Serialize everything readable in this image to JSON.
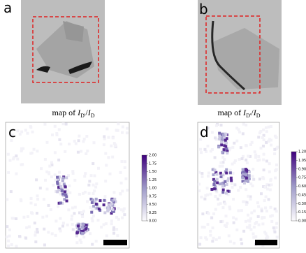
{
  "panels": [
    {
      "label": "a",
      "caption": {
        "prefix": "map of",
        "numerator": "I",
        "numerator_sub": "D'",
        "separator": "/",
        "denominator": "I",
        "denominator_sub": "D"
      }
    },
    {
      "label": "b",
      "caption": {
        "prefix": "map of",
        "numerator": "I",
        "numerator_sub": "D'",
        "separator": "/",
        "denominator": "I",
        "denominator_sub": "D"
      }
    },
    {
      "label": "c",
      "colorbar": {
        "range": [
          0,
          2
        ],
        "ticks": [
          {
            "value": 0,
            "label": "0.00"
          },
          {
            "value": 0.25,
            "label": "0.25"
          },
          {
            "value": 0.5,
            "label": "0.50"
          },
          {
            "value": 0.75,
            "label": "0.75"
          },
          {
            "value": 1,
            "label": "1.00"
          },
          {
            "value": 1.25,
            "label": "1.25"
          },
          {
            "value": 1.5,
            "label": "1.50"
          },
          {
            "value": 1.75,
            "label": "1.75"
          },
          {
            "value": 2,
            "label": "2.00"
          }
        ]
      }
    },
    {
      "label": "d",
      "colorbar": {
        "range": [
          0,
          1.2
        ],
        "ticks": [
          {
            "value": 0,
            "label": "0.00"
          },
          {
            "value": 0.15,
            "label": "0.15"
          },
          {
            "value": 0.3,
            "label": "0.30"
          },
          {
            "value": 0.45,
            "label": "0.45"
          },
          {
            "value": 0.6,
            "label": "0.60"
          },
          {
            "value": 0.75,
            "label": "0.75"
          },
          {
            "value": 0.9,
            "label": "0.90"
          },
          {
            "value": 1.05,
            "label": "1.05"
          },
          {
            "value": 1.2,
            "label": "1.20"
          }
        ]
      }
    }
  ]
}
